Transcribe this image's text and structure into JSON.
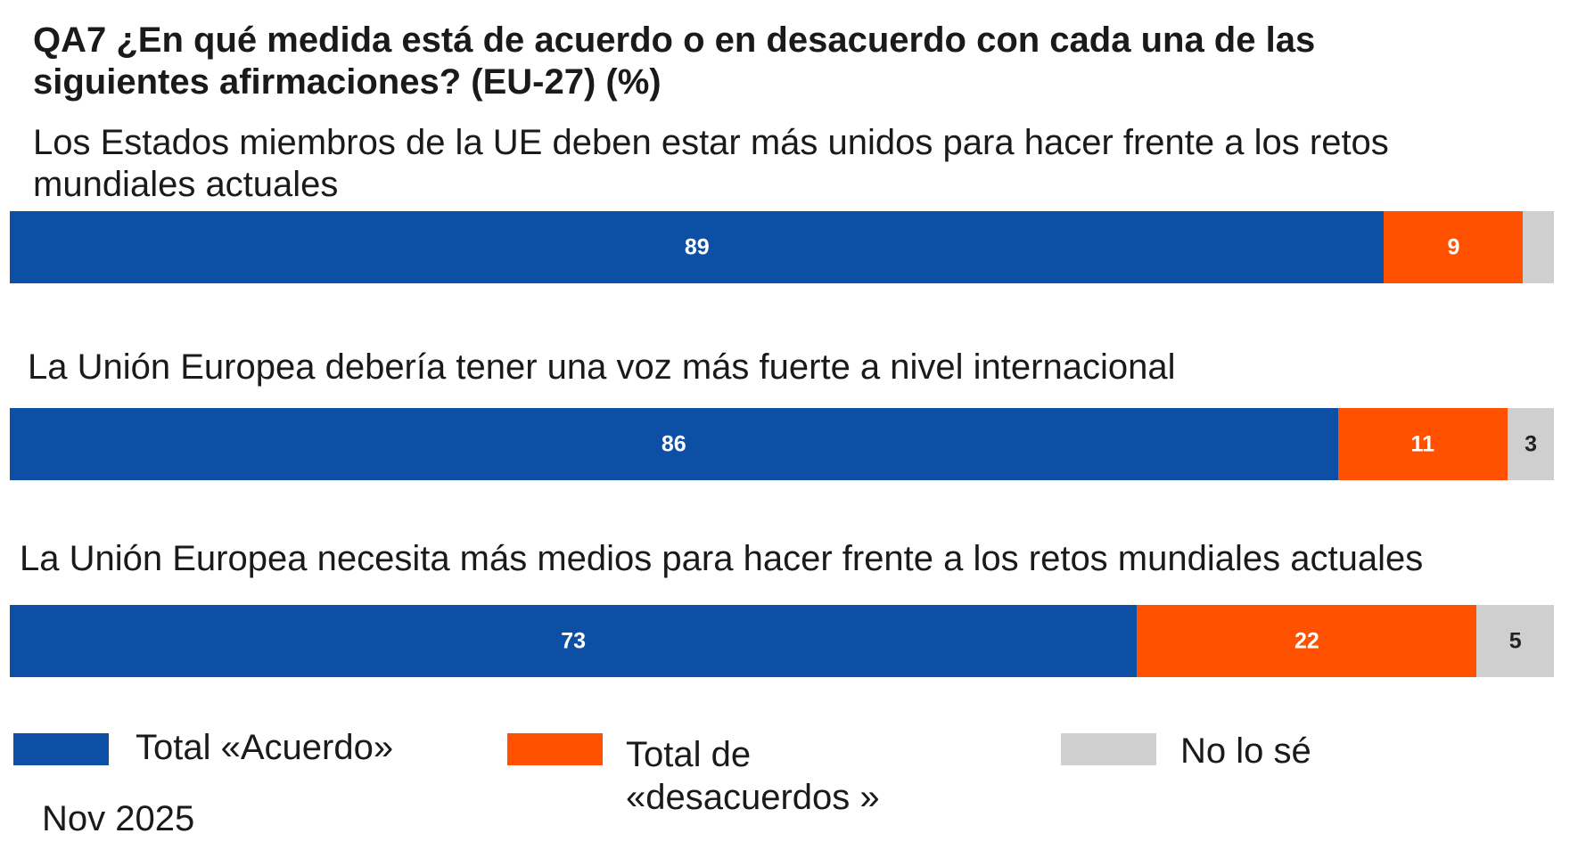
{
  "chart_data": {
    "type": "bar",
    "orientation": "horizontal-stacked-100",
    "title": "QA7 ¿En qué medida está de acuerdo o en desacuerdo con cada una de las siguientes afirmaciones? (EU-27) (%)",
    "categories": [
      "Los Estados miembros de la UE deben estar más unidos para hacer frente a los retos mundiales actuales",
      "La Unión Europea debería tener una voz más fuerte a nivel internacional",
      "La Unión Europea necesita más medios para hacer frente a los retos mundiales actuales"
    ],
    "series": [
      {
        "name": "Total «Acuerdo»",
        "color": "#0e4fa6",
        "values": [
          89,
          86,
          73
        ],
        "labels": [
          "89",
          "86",
          "73"
        ]
      },
      {
        "name": "Total de «desacuerdos »",
        "color": "#ff5100",
        "values": [
          9,
          11,
          22
        ],
        "labels": [
          "9",
          "11",
          "22"
        ]
      },
      {
        "name": "No lo sé",
        "color": "#cfcfcf",
        "values": [
          2,
          3,
          5
        ],
        "labels": [
          "",
          "3",
          "5"
        ]
      }
    ],
    "xlim": [
      0,
      100
    ],
    "legend_position": "bottom",
    "footnote": "Nov 2025"
  }
}
